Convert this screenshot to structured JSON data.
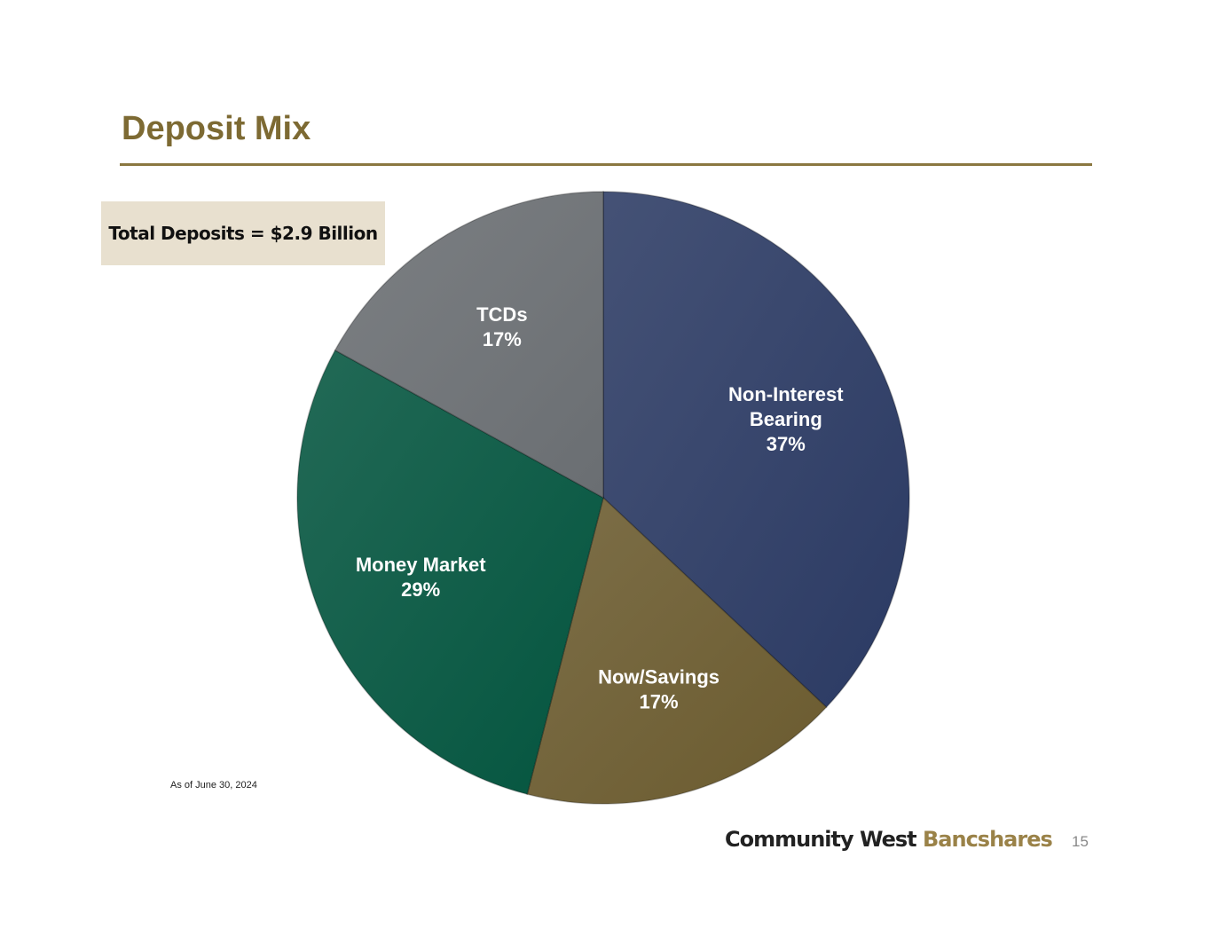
{
  "title": "Deposit Mix",
  "total_label": "Total Deposits = $2.9 Billion",
  "note": "As of June 30, 2024",
  "footer": {
    "logo_part1": "Community West",
    "logo_part2": "Bancshares",
    "page_number": "15"
  },
  "chart_data": {
    "type": "pie",
    "title": "Deposit Mix",
    "start_angle": "12 o'clock, clockwise",
    "slices": [
      {
        "label_lines": [
          "Non-Interest",
          "Bearing"
        ],
        "label": "Non-Interest Bearing",
        "value": 37,
        "value_label": "37%",
        "color": "#2b3a63"
      },
      {
        "label_lines": [
          "Now/Savings"
        ],
        "label": "Now/Savings",
        "value": 17,
        "value_label": "17%",
        "color": "#6b5b2f"
      },
      {
        "label_lines": [
          "Money Market"
        ],
        "label": "Money Market",
        "value": 29,
        "value_label": "29%",
        "color": "#04553f"
      },
      {
        "label_lines": [
          "TCDs"
        ],
        "label": "TCDs",
        "value": 17,
        "value_label": "17%",
        "color": "#6a6e72"
      }
    ]
  }
}
